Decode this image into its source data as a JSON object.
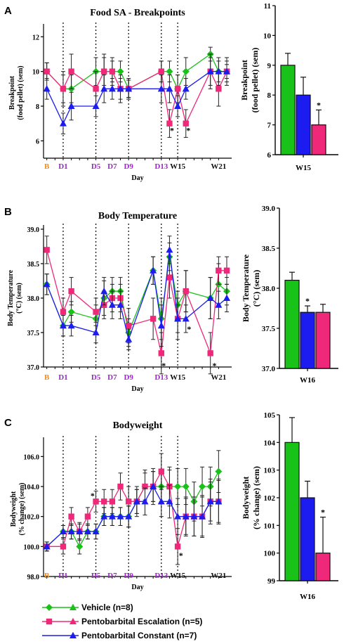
{
  "colors": {
    "vehicle": "#19c219",
    "escalation": "#f0287a",
    "constant": "#1c1cf0",
    "baseline_label": "#f28c1e",
    "day_label": "#9b27c9",
    "week_label": "#111111"
  },
  "legend": [
    {
      "key": "vehicle",
      "label": "Vehicle (n=8)",
      "markers": [
        "diamond",
        "triangle"
      ]
    },
    {
      "key": "escalation",
      "label": "Pentobarbital Escalation (n=5)",
      "markers": [
        "square",
        "triangle"
      ]
    },
    {
      "key": "constant",
      "label": "Pentobarbital Constant (n=7)",
      "markers": [
        "triangle"
      ]
    }
  ],
  "chart_data": [
    {
      "panel": "A",
      "type": "line",
      "title": "Food SA - Breakpoints",
      "ylabel_lines": [
        "Breakpoint",
        "(food pellet) (sem)"
      ],
      "xlabel": "Day",
      "ylim": [
        5,
        12.5
      ],
      "yticks": [
        6,
        8,
        10,
        12
      ],
      "xlim": [
        0,
        21
      ],
      "xtick_labels": [
        {
          "x": 0,
          "label": "B",
          "style": "baseline"
        },
        {
          "x": 2,
          "label": "D1",
          "style": "day"
        },
        {
          "x": 6,
          "label": "D5",
          "style": "day"
        },
        {
          "x": 8,
          "label": "D7",
          "style": "day"
        },
        {
          "x": 10,
          "label": "D9",
          "style": "day"
        },
        {
          "x": 14,
          "label": "D13",
          "style": "day"
        },
        {
          "x": 16,
          "label": "W15",
          "style": "week"
        },
        {
          "x": 21,
          "label": "W21",
          "style": "week"
        }
      ],
      "dotted_x": [
        2,
        6,
        10,
        14,
        16
      ],
      "series": [
        {
          "key": "vehicle",
          "marker": "diamond",
          "x": [
            0,
            2,
            3,
            6,
            7,
            8,
            9,
            10,
            14,
            15,
            16,
            17,
            20,
            21,
            22
          ],
          "y": [
            10,
            9,
            9,
            10,
            10,
            10,
            10,
            9,
            10,
            10,
            9,
            10,
            11,
            10,
            10
          ],
          "err": [
            0.5,
            0.8,
            0.8,
            0.8,
            0.8,
            0.6,
            0.6,
            0.5,
            0.6,
            0.6,
            0.8,
            0.8,
            0.4,
            0.6,
            0.4
          ]
        },
        {
          "key": "escalation",
          "marker": "square",
          "x": [
            0,
            2,
            3,
            6,
            7,
            8,
            9,
            10,
            14,
            15,
            16,
            17,
            20,
            21,
            22
          ],
          "y": [
            10,
            9,
            10,
            9,
            10,
            10,
            9,
            9,
            10,
            7,
            9,
            7,
            10,
            9,
            10
          ],
          "err": [
            0.5,
            1.0,
            1.0,
            1.0,
            1.0,
            0.8,
            0.8,
            0.6,
            0.6,
            0.8,
            0.8,
            0.8,
            1.0,
            1.0,
            0.8
          ]
        },
        {
          "key": "constant",
          "marker": "triangle",
          "x": [
            0,
            2,
            3,
            6,
            7,
            8,
            9,
            10,
            14,
            15,
            16,
            17,
            20,
            21,
            22
          ],
          "y": [
            9,
            7,
            8,
            8,
            9,
            9,
            9,
            9,
            9,
            9,
            8,
            9,
            10,
            10,
            10
          ],
          "err": [
            0.6,
            0.6,
            0.8,
            0.6,
            0.8,
            0.6,
            0.6,
            0.5,
            0.8,
            0.8,
            0.6,
            0.6,
            0.8,
            0.8,
            0.6
          ]
        }
      ],
      "stars": [
        {
          "x": 15.3,
          "y": 6.6
        },
        {
          "x": 17.3,
          "y": 6.6
        }
      ]
    },
    {
      "panel": "A",
      "type": "bar",
      "category": "W15",
      "ylabel_lines": [
        "Breakpoint",
        "(food pellet) (sem)"
      ],
      "ylim": [
        6,
        11
      ],
      "yticks": [
        6,
        7,
        8,
        9,
        10,
        11
      ],
      "bars": [
        {
          "key": "vehicle",
          "value": 9.0,
          "err": 0.4
        },
        {
          "key": "constant",
          "value": 8.0,
          "err": 0.6
        },
        {
          "key": "escalation",
          "value": 7.0,
          "err": 0.5,
          "star": true
        }
      ]
    },
    {
      "panel": "B",
      "type": "line",
      "title": "Body Temperature",
      "ylabel_lines": [
        "Body Temperature",
        "(°C) (sem)"
      ],
      "xlabel": "Day",
      "ylim": [
        37.0,
        39.0
      ],
      "yticks": [
        37.0,
        37.5,
        38.0,
        38.5,
        39.0
      ],
      "xlim": [
        0,
        21
      ],
      "xtick_labels": [
        {
          "x": 0,
          "label": "B",
          "style": "baseline"
        },
        {
          "x": 2,
          "label": "D1",
          "style": "day"
        },
        {
          "x": 6,
          "label": "D5",
          "style": "day"
        },
        {
          "x": 8,
          "label": "D7",
          "style": "day"
        },
        {
          "x": 10,
          "label": "D9",
          "style": "day"
        },
        {
          "x": 14,
          "label": "D13",
          "style": "day"
        },
        {
          "x": 16,
          "label": "W15",
          "style": "week"
        },
        {
          "x": 21,
          "label": "W21",
          "style": "week"
        }
      ],
      "dotted_x": [
        2,
        6,
        10,
        14,
        16
      ],
      "series": [
        {
          "key": "vehicle",
          "marker": "diamond",
          "x": [
            0,
            2,
            3,
            6,
            7,
            8,
            9,
            10,
            13,
            14,
            15,
            16,
            17,
            20,
            21,
            22
          ],
          "y": [
            38.2,
            37.6,
            37.8,
            37.7,
            38.0,
            38.1,
            38.1,
            37.5,
            38.4,
            37.7,
            38.6,
            37.9,
            38.1,
            38.0,
            38.2,
            38.1
          ],
          "err": [
            0.15,
            0.15,
            0.15,
            0.2,
            0.25,
            0.2,
            0.2,
            0.2,
            0.2,
            0.3,
            0.2,
            0.2,
            0.3,
            0.3,
            0.3,
            0.2
          ]
        },
        {
          "key": "escalation",
          "marker": "square",
          "x": [
            0,
            2,
            3,
            6,
            7,
            8,
            9,
            10,
            13,
            14,
            15,
            16,
            17,
            20,
            21,
            22
          ],
          "y": [
            38.7,
            37.8,
            38.1,
            37.8,
            37.9,
            38.0,
            38.0,
            37.6,
            37.7,
            37.2,
            38.3,
            37.7,
            38.1,
            37.2,
            38.4,
            38.4
          ],
          "err": [
            0.2,
            0.2,
            0.2,
            0.2,
            0.2,
            0.2,
            0.2,
            0.25,
            0.3,
            0.3,
            0.3,
            0.3,
            0.3,
            0.3,
            0.2,
            0.2
          ]
        },
        {
          "key": "constant",
          "marker": "triangle",
          "x": [
            0,
            2,
            3,
            6,
            7,
            8,
            9,
            10,
            13,
            14,
            15,
            16,
            17,
            20,
            21,
            22
          ],
          "y": [
            38.2,
            37.6,
            37.6,
            37.5,
            38.1,
            37.9,
            37.9,
            37.4,
            38.4,
            37.6,
            38.7,
            37.7,
            37.7,
            38.0,
            37.9,
            38.0
          ],
          "err": [
            0.15,
            0.15,
            0.15,
            0.15,
            0.2,
            0.2,
            0.2,
            0.15,
            0.2,
            0.3,
            0.2,
            0.2,
            0.2,
            0.3,
            0.2,
            0.2
          ]
        }
      ],
      "stars": [
        {
          "x": 14.3,
          "y": 37.02
        },
        {
          "x": 17.4,
          "y": 37.55
        },
        {
          "x": 20.5,
          "y": 37.02
        }
      ]
    },
    {
      "panel": "B",
      "type": "bar",
      "category": "W16",
      "ylabel_lines": [
        "Body Temperature",
        "(°C) (sem)"
      ],
      "ylim": [
        37.0,
        39.0
      ],
      "yticks": [
        37.0,
        37.5,
        38.0,
        38.5,
        39.0
      ],
      "bars": [
        {
          "key": "vehicle",
          "value": 38.1,
          "err": 0.1
        },
        {
          "key": "constant",
          "value": 37.7,
          "err": 0.08,
          "star": true
        },
        {
          "key": "escalation",
          "value": 37.7,
          "err": 0.1
        }
      ]
    },
    {
      "panel": "C",
      "type": "line",
      "title": "Bodyweight",
      "ylabel_lines": [
        "Bodyweight",
        "(% change) (sem)"
      ],
      "xlabel": "Day",
      "ylim": [
        98,
        107
      ],
      "yticks": [
        98,
        100,
        102,
        104,
        106
      ],
      "xlim": [
        0,
        21
      ],
      "xtick_labels": [
        {
          "x": 0,
          "label": "B",
          "style": "baseline"
        },
        {
          "x": 2,
          "label": "D1",
          "style": "day"
        },
        {
          "x": 6,
          "label": "D5",
          "style": "day"
        },
        {
          "x": 8,
          "label": "D7",
          "style": "day"
        },
        {
          "x": 10,
          "label": "D9",
          "style": "day"
        },
        {
          "x": 14,
          "label": "D13",
          "style": "day"
        },
        {
          "x": 16,
          "label": "W15",
          "style": "week"
        },
        {
          "x": 21,
          "label": "W21",
          "style": "week"
        }
      ],
      "dotted_x": [
        2,
        6,
        10,
        14,
        16
      ],
      "series": [
        {
          "key": "vehicle",
          "marker": "diamond",
          "x": [
            0,
            2,
            3,
            4,
            5,
            6,
            7,
            8,
            9,
            10,
            11,
            12,
            13,
            14,
            15,
            16,
            17,
            18,
            19,
            20,
            21
          ],
          "y": [
            100,
            101,
            101,
            100,
            101,
            101,
            102,
            102,
            102,
            102,
            103,
            104,
            104,
            104,
            104,
            104,
            104,
            103,
            104,
            104,
            105
          ],
          "err": [
            0.3,
            0.4,
            0.5,
            0.5,
            0.5,
            0.5,
            0.6,
            0.6,
            0.6,
            0.7,
            0.8,
            0.9,
            1.0,
            1.0,
            1.1,
            1.2,
            1.2,
            1.3,
            1.3,
            1.3,
            1.4
          ]
        },
        {
          "key": "escalation",
          "marker": "square",
          "x": [
            0,
            2,
            3,
            4,
            5,
            6,
            7,
            8,
            9,
            10,
            11,
            12,
            13,
            14,
            15,
            16,
            17,
            18,
            19,
            20,
            21
          ],
          "y": [
            100,
            100,
            102,
            101,
            102,
            103,
            103,
            103,
            104,
            103,
            103,
            104,
            104,
            105,
            104,
            100,
            102,
            102,
            102,
            103,
            103
          ],
          "err": [
            0.3,
            0.5,
            0.6,
            0.6,
            0.6,
            0.7,
            0.8,
            0.8,
            0.9,
            1.0,
            1.0,
            1.1,
            1.2,
            1.2,
            1.3,
            1.2,
            1.3,
            1.3,
            1.4,
            1.5,
            1.5
          ]
        },
        {
          "key": "constant",
          "marker": "triangle",
          "x": [
            0,
            2,
            3,
            4,
            5,
            6,
            7,
            8,
            9,
            10,
            11,
            12,
            13,
            14,
            15,
            16,
            17,
            18,
            19,
            20,
            21
          ],
          "y": [
            100,
            101,
            101,
            101,
            101,
            101,
            102,
            102,
            102,
            102,
            103,
            103,
            104,
            103,
            103,
            102,
            102,
            102,
            102,
            103,
            103
          ],
          "err": [
            0.3,
            0.4,
            0.5,
            0.5,
            0.5,
            0.5,
            0.6,
            0.6,
            0.6,
            0.7,
            0.8,
            0.9,
            1.0,
            1.0,
            1.1,
            1.2,
            1.2,
            1.3,
            1.3,
            1.3,
            1.4
          ]
        }
      ],
      "stars": [
        {
          "x": 5.6,
          "y": 103.4
        },
        {
          "x": 16.4,
          "y": 99.4
        }
      ]
    },
    {
      "panel": "C",
      "type": "bar",
      "category": "W16",
      "ylabel_lines": [
        "Bodyweight",
        "(% change) (sem)"
      ],
      "ylim": [
        99,
        105
      ],
      "yticks": [
        99,
        100,
        101,
        102,
        103,
        104,
        105
      ],
      "bars": [
        {
          "key": "vehicle",
          "value": 104.0,
          "err": 0.9
        },
        {
          "key": "constant",
          "value": 102.0,
          "err": 0.6
        },
        {
          "key": "escalation",
          "value": 100.0,
          "err": 1.3,
          "star": true
        }
      ]
    }
  ]
}
